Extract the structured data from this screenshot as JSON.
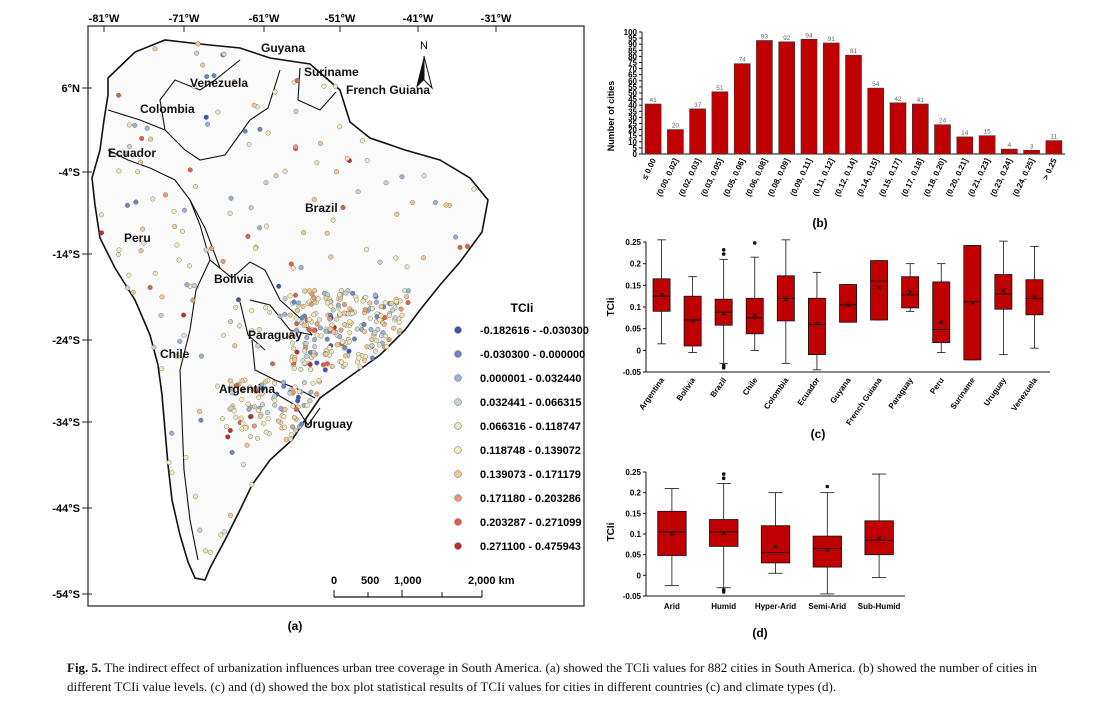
{
  "map": {
    "panel_label": "(a)",
    "lon_labels": [
      "-81°W",
      "-71°W",
      "-61°W",
      "-51°W",
      "-41°W",
      "-31°W"
    ],
    "lat_labels": [
      "6°N",
      "-4°S",
      "-14°S",
      "-24°S",
      "-34°S",
      "-44°S",
      "-54°S"
    ],
    "countries": [
      "Guyana",
      "Venezuela",
      "Suriname",
      "French Guiana",
      "Colombia",
      "Ecuador",
      "Brazil",
      "Peru",
      "Bolivia",
      "Paraguay",
      "Chile",
      "Argentina",
      "Uruguay"
    ],
    "north_label": "N",
    "scale_labels": [
      "0",
      "500",
      "1,000",
      "2,000 km"
    ],
    "legend_title": "TCIi",
    "legend": [
      {
        "label": "-0.182616 - -0.030300",
        "color": "#3b55b5"
      },
      {
        "label": "-0.030300 - 0.000000",
        "color": "#6b86c4"
      },
      {
        "label": "0.000001 - 0.032440",
        "color": "#98b3d4"
      },
      {
        "label": "0.032441 - 0.066315",
        "color": "#c3d3d4"
      },
      {
        "label": "0.066316 - 0.118747",
        "color": "#e9e6c1"
      },
      {
        "label": "0.118748 - 0.139072",
        "color": "#f7ebb1"
      },
      {
        "label": "0.139073 - 0.171179",
        "color": "#f5c88f"
      },
      {
        "label": "0.171180 - 0.203286",
        "color": "#ec9b6c"
      },
      {
        "label": "0.203287 - 0.271099",
        "color": "#dd6148"
      },
      {
        "label": "0.271100 - 0.475943",
        "color": "#c52a27"
      }
    ]
  },
  "chart_data": [
    {
      "type": "bar",
      "panel_label": "(b)",
      "ylabel": "Number of cities",
      "ylim": [
        0,
        100
      ],
      "yticks": [
        0,
        5,
        10,
        15,
        20,
        25,
        30,
        35,
        40,
        45,
        50,
        55,
        60,
        65,
        70,
        75,
        80,
        85,
        90,
        95,
        100
      ],
      "categories": [
        "≤ 0.00",
        "(0.00, 0.02]",
        "(0.02, 0.03]",
        "(0.03, 0.05]",
        "(0.05, 0.06]",
        "(0.06, 0.08]",
        "(0.08, 0.09]",
        "(0.09, 0.11]",
        "(0.11, 0.12]",
        "(0.12, 0.14]",
        "(0.14, 0.15]",
        "(0.15, 0.17]",
        "(0.17, 0.18]",
        "(0.18, 0.20]",
        "(0.20, 0.21]",
        "(0.21, 0.23]",
        "(0.23, 0.24]",
        "(0.24, 0.25]",
        "> 0.25"
      ],
      "values": [
        41,
        20,
        37,
        51,
        74,
        93,
        92,
        94,
        91,
        81,
        54,
        42,
        41,
        24,
        14,
        15,
        4,
        3,
        11
      ],
      "bar_color": "#c00000"
    },
    {
      "type": "box",
      "panel_label": "(c)",
      "ylabel": "TCIi",
      "ylim": [
        -0.05,
        0.25
      ],
      "yticks": [
        "-0.05",
        "0",
        "0.05",
        "0.1",
        "0.15",
        "0.2",
        "0.25"
      ],
      "categories": [
        "Argentina",
        "Bolivia",
        "Brazil",
        "Chile",
        "Colombia",
        "Ecuador",
        "Guyana",
        "French Guiana",
        "Paraguay",
        "Peru",
        "Suriname",
        "Uruguay",
        "Venezuela"
      ],
      "boxes": [
        {
          "min": 0.015,
          "q1": 0.09,
          "median": 0.125,
          "q3": 0.165,
          "max": 0.255,
          "mean": 0.128,
          "outliers": []
        },
        {
          "min": -0.005,
          "q1": 0.01,
          "median": 0.07,
          "q3": 0.125,
          "max": 0.17,
          "mean": 0.068,
          "outliers": []
        },
        {
          "min": -0.03,
          "q1": 0.058,
          "median": 0.088,
          "q3": 0.118,
          "max": 0.21,
          "mean": 0.085,
          "outliers": [
            0.222,
            0.232,
            -0.035,
            -0.04
          ]
        },
        {
          "min": 0.0,
          "q1": 0.038,
          "median": 0.075,
          "q3": 0.12,
          "max": 0.215,
          "mean": 0.082,
          "outliers": [
            0.248
          ]
        },
        {
          "min": -0.03,
          "q1": 0.068,
          "median": 0.12,
          "q3": 0.172,
          "max": 0.255,
          "mean": 0.118,
          "outliers": []
        },
        {
          "min": -0.045,
          "q1": -0.01,
          "median": 0.06,
          "q3": 0.12,
          "max": 0.18,
          "mean": 0.062,
          "outliers": []
        },
        {
          "min": 0.065,
          "q1": 0.065,
          "median": 0.105,
          "q3": 0.152,
          "max": 0.152,
          "mean": 0.105,
          "outliers": []
        },
        {
          "min": 0.07,
          "q1": 0.07,
          "median": 0.16,
          "q3": 0.207,
          "max": 0.207,
          "mean": 0.145,
          "outliers": []
        },
        {
          "min": 0.09,
          "q1": 0.098,
          "median": 0.128,
          "q3": 0.17,
          "max": 0.2,
          "mean": 0.135,
          "outliers": []
        },
        {
          "min": -0.005,
          "q1": 0.018,
          "median": 0.048,
          "q3": 0.158,
          "max": 0.2,
          "mean": 0.065,
          "outliers": []
        },
        {
          "min": -0.022,
          "q1": -0.022,
          "median": 0.112,
          "q3": 0.242,
          "max": 0.242,
          "mean": 0.11,
          "outliers": []
        },
        {
          "min": -0.01,
          "q1": 0.095,
          "median": 0.13,
          "q3": 0.175,
          "max": 0.252,
          "mean": 0.138,
          "outliers": []
        },
        {
          "min": 0.005,
          "q1": 0.082,
          "median": 0.12,
          "q3": 0.163,
          "max": 0.24,
          "mean": 0.122,
          "outliers": []
        }
      ]
    },
    {
      "type": "box",
      "panel_label": "(d)",
      "ylabel": "TCIi",
      "ylim": [
        -0.05,
        0.25
      ],
      "yticks": [
        "-0.05",
        "0",
        "0.05",
        "0.1",
        "0.15",
        "0.2",
        "0.25"
      ],
      "categories": [
        "Arid",
        "Humid",
        "Hyper-Arid",
        "Semi-Arid",
        "Sub-Humid"
      ],
      "boxes": [
        {
          "min": -0.025,
          "q1": 0.048,
          "median": 0.105,
          "q3": 0.155,
          "max": 0.21,
          "mean": 0.1,
          "outliers": []
        },
        {
          "min": -0.03,
          "q1": 0.07,
          "median": 0.105,
          "q3": 0.135,
          "max": 0.222,
          "mean": 0.102,
          "outliers": [
            0.235,
            0.245,
            -0.035,
            -0.04
          ]
        },
        {
          "min": 0.005,
          "q1": 0.03,
          "median": 0.055,
          "q3": 0.12,
          "max": 0.2,
          "mean": 0.07,
          "outliers": []
        },
        {
          "min": -0.045,
          "q1": 0.02,
          "median": 0.065,
          "q3": 0.095,
          "max": 0.2,
          "mean": 0.062,
          "outliers": [
            0.215
          ]
        },
        {
          "min": -0.005,
          "q1": 0.05,
          "median": 0.085,
          "q3": 0.132,
          "max": 0.245,
          "mean": 0.09,
          "outliers": []
        }
      ]
    }
  ],
  "caption": {
    "label": "Fig. 5.",
    "text": "The indirect effect of urbanization influences urban tree coverage in South America. (a) showed the TCIi values for 882 cities in South America. (b) showed the number of cities in different TCIi value levels. (c) and (d) showed the box plot statistical results of TCIi values for cities in different countries (c) and climate types (d)."
  }
}
